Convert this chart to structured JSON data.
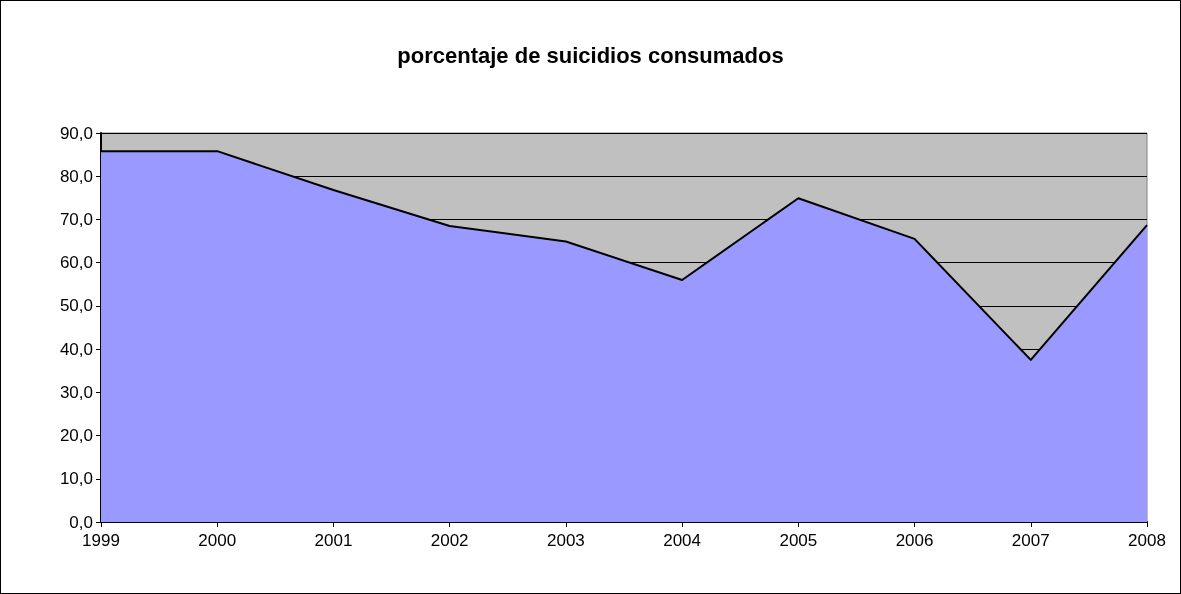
{
  "chart_data": {
    "type": "area",
    "title": "porcentaje de suicidios consumados",
    "categories": [
      "1999",
      "2000",
      "2001",
      "2002",
      "2003",
      "2004",
      "2005",
      "2006",
      "2007",
      "2008"
    ],
    "series": [
      {
        "color": "#9999ff",
        "values": [
          85.8,
          85.8,
          76.8,
          68.5,
          64.9,
          56.0,
          74.9,
          65.5,
          37.5,
          68.7
        ]
      }
    ],
    "ylim": [
      0,
      90
    ],
    "yticks": [
      {
        "value": 0,
        "label": "0,0"
      },
      {
        "value": 10,
        "label": "10,0"
      },
      {
        "value": 20,
        "label": "20,0"
      },
      {
        "value": 30,
        "label": "30,0"
      },
      {
        "value": 40,
        "label": "40,0"
      },
      {
        "value": 50,
        "label": "50,0"
      },
      {
        "value": 60,
        "label": "60,0"
      },
      {
        "value": 70,
        "label": "70,0"
      },
      {
        "value": 80,
        "label": "80,0"
      },
      {
        "value": 90,
        "label": "90,0"
      }
    ],
    "grid": "y",
    "marker": "none"
  }
}
